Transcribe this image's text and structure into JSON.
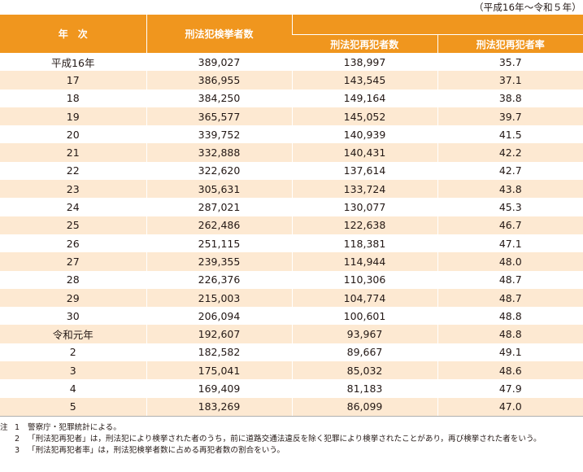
{
  "period": "（平成16年〜令和５年）",
  "headers": {
    "year": "年　次",
    "arrested": "刑法犯検挙者数",
    "repeat": "刑法犯再犯者数",
    "rate": "刑法犯再犯者率"
  },
  "rows": [
    {
      "year": "平成16年",
      "arrested": "389,027",
      "repeat": "138,997",
      "rate": "35.7"
    },
    {
      "year": "17",
      "arrested": "386,955",
      "repeat": "143,545",
      "rate": "37.1"
    },
    {
      "year": "18",
      "arrested": "384,250",
      "repeat": "149,164",
      "rate": "38.8"
    },
    {
      "year": "19",
      "arrested": "365,577",
      "repeat": "145,052",
      "rate": "39.7"
    },
    {
      "year": "20",
      "arrested": "339,752",
      "repeat": "140,939",
      "rate": "41.5"
    },
    {
      "year": "21",
      "arrested": "332,888",
      "repeat": "140,431",
      "rate": "42.2"
    },
    {
      "year": "22",
      "arrested": "322,620",
      "repeat": "137,614",
      "rate": "42.7"
    },
    {
      "year": "23",
      "arrested": "305,631",
      "repeat": "133,724",
      "rate": "43.8"
    },
    {
      "year": "24",
      "arrested": "287,021",
      "repeat": "130,077",
      "rate": "45.3"
    },
    {
      "year": "25",
      "arrested": "262,486",
      "repeat": "122,638",
      "rate": "46.7"
    },
    {
      "year": "26",
      "arrested": "251,115",
      "repeat": "118,381",
      "rate": "47.1"
    },
    {
      "year": "27",
      "arrested": "239,355",
      "repeat": "114,944",
      "rate": "48.0"
    },
    {
      "year": "28",
      "arrested": "226,376",
      "repeat": "110,306",
      "rate": "48.7"
    },
    {
      "year": "29",
      "arrested": "215,003",
      "repeat": "104,774",
      "rate": "48.7"
    },
    {
      "year": "30",
      "arrested": "206,094",
      "repeat": "100,601",
      "rate": "48.8"
    },
    {
      "year": "令和元年",
      "arrested": "192,607",
      "repeat": "93,967",
      "rate": "48.8"
    },
    {
      "year": "2",
      "arrested": "182,582",
      "repeat": "89,667",
      "rate": "49.1"
    },
    {
      "year": "3",
      "arrested": "175,041",
      "repeat": "85,032",
      "rate": "48.6"
    },
    {
      "year": "4",
      "arrested": "169,409",
      "repeat": "81,183",
      "rate": "47.9"
    },
    {
      "year": "5",
      "arrested": "183,269",
      "repeat": "86,099",
      "rate": "47.0"
    }
  ],
  "notes": {
    "label": "注",
    "items": [
      {
        "num": "1",
        "text": "警察庁・犯罪統計による。"
      },
      {
        "num": "2",
        "text": "「刑法犯再犯者」は，刑法犯により検挙された者のうち，前に道路交通法違反を除く犯罪により検挙されたことがあり，再び検挙された者をいう。"
      },
      {
        "num": "3",
        "text": "「刑法犯再犯者率」は，刑法犯検挙者数に占める再犯者数の割合をいう。"
      }
    ]
  }
}
